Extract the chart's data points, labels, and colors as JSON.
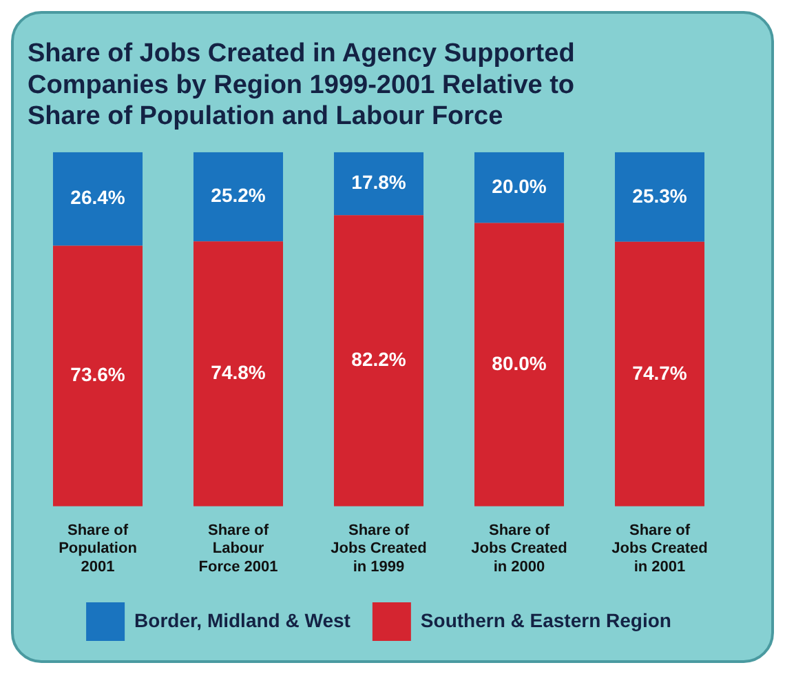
{
  "chart_data": {
    "type": "bar",
    "title": "Share of Jobs Created in Agency Supported Companies by Region 1999-2001 Relative to Share of Population and Labour Force",
    "categories": [
      "Share of\nPopulation\n2001",
      "Share of\nLabour\nForce 2001",
      "Share of\nJobs Created\nin 1999",
      "Share of\nJobs Created\nin 2000",
      "Share of\nJobs Created\nin 2001"
    ],
    "series": [
      {
        "name": "Southern & Eastern Region",
        "color": "#d42530",
        "values": [
          73.6,
          74.8,
          82.2,
          80.0,
          74.7
        ],
        "value_labels": [
          "73.6%",
          "74.8%",
          "82.2%",
          "80.0%",
          "74.7%"
        ]
      },
      {
        "name": "Border, Midland & West",
        "color": "#1a74bf",
        "values": [
          26.4,
          25.2,
          17.8,
          20.0,
          25.3
        ],
        "value_labels": [
          "26.4%",
          "25.2%",
          "17.8%",
          "20.0%",
          "25.3%"
        ]
      }
    ],
    "stacked": true,
    "tick_labels": "x",
    "legend": "bottom"
  }
}
